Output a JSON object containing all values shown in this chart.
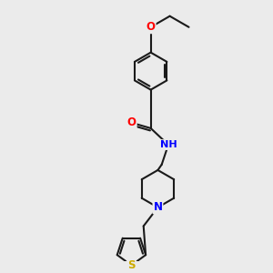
{
  "bg_color": "#ebebeb",
  "bond_color": "#1a1a1a",
  "bond_width": 1.5,
  "atom_colors": {
    "O": "#ff0000",
    "N": "#0000ff",
    "S": "#ccaa00",
    "C": "#1a1a1a",
    "H": "#4a9a9a"
  },
  "font_size": 8.5,
  "figsize": [
    3.0,
    3.0
  ],
  "dpi": 100
}
